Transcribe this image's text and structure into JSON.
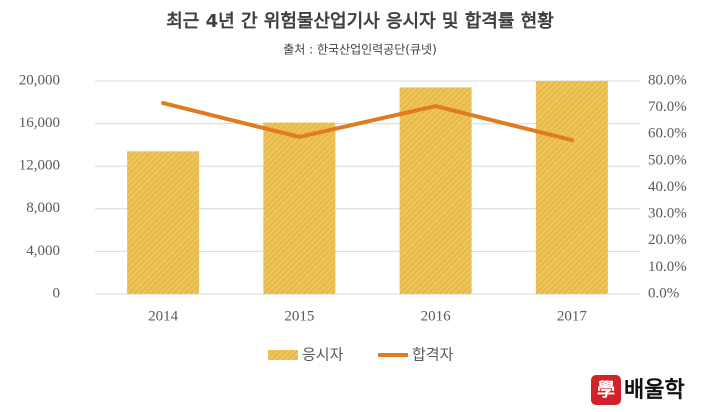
{
  "chart_data": {
    "type": "bar_line",
    "title": "최근 4년 간 위험물산업기사 응시자 및 합격률 현황",
    "subtitle": "출처 : 한국산업인력공단(큐넷)",
    "categories": [
      "2014",
      "2015",
      "2016",
      "2017"
    ],
    "series": [
      {
        "name": "응시자",
        "type": "bar",
        "color": "#e8bb4a",
        "values": [
          13400,
          16100,
          19400,
          20000
        ]
      },
      {
        "name": "합격자",
        "type": "line",
        "color": "#e07b22",
        "axis": "y2",
        "values": [
          71.7,
          59.0,
          70.6,
          57.8
        ]
      }
    ],
    "ylim": [
      0,
      20000
    ],
    "yticks": [
      0,
      {
        "value": 4000,
        "label": "4,000"
      },
      {
        "value": 8000,
        "label": "8,000"
      },
      {
        "value": 12000,
        "label": "12,000"
      },
      {
        "value": 16000,
        "label": "16,000"
      },
      {
        "value": 20000,
        "label": "20,000"
      }
    ],
    "y2lim": [
      0,
      80
    ],
    "y2ticks": [
      {
        "value": 0,
        "label": "0.0%"
      },
      {
        "value": 10,
        "label": "10.0%"
      },
      {
        "value": 20,
        "label": "20.0%"
      },
      {
        "value": 30,
        "label": "30.0%"
      },
      {
        "value": 40,
        "label": "40.0%"
      },
      {
        "value": 50,
        "label": "50.0%"
      },
      {
        "value": 60,
        "label": "60.0%"
      },
      {
        "value": 70,
        "label": "70.0%"
      },
      {
        "value": 80,
        "label": "80.0%"
      }
    ],
    "grid": true,
    "legend": "bottom"
  },
  "logo": {
    "icon": "學",
    "text": "배울학"
  }
}
